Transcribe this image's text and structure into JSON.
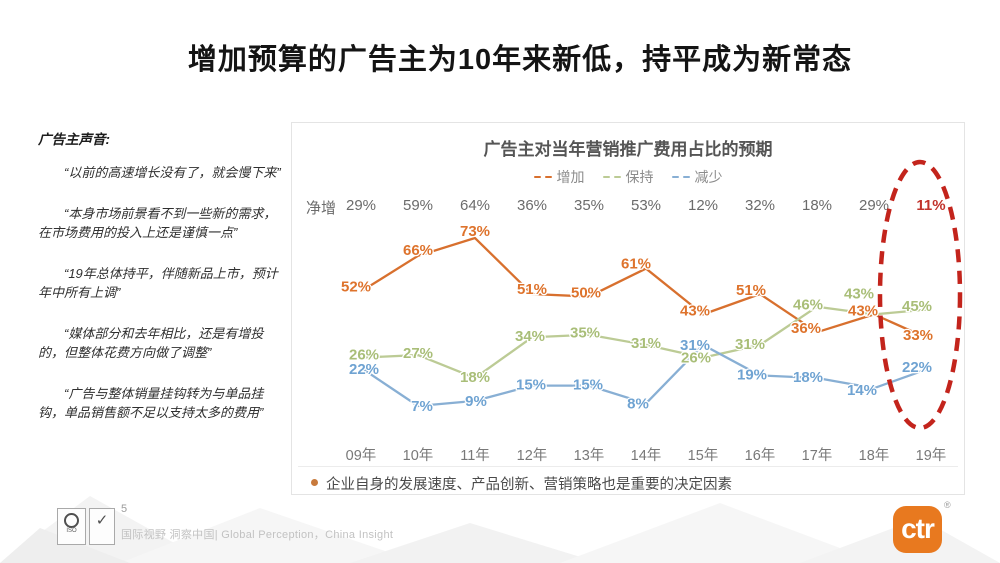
{
  "slide": {
    "title": "增加预算的广告主为10年来新低，持平成为新常态"
  },
  "voices": {
    "heading": "广告主声音:",
    "quotes": [
      "“以前的高速增长没有了，就会慢下来”",
      "“本身市场前景看不到一些新的需求，在市场费用的投入上还是谨慎一点”",
      "“19年总体持平，伴随新品上市，预计年中所有上调”",
      "“媒体部分和去年相比，还是有增投的，但整体花费方向做了调整”",
      "“广告与整体销量挂钩转为与单品挂钩，单品销售额不足以支持太多的费用”"
    ]
  },
  "chart": {
    "net_label": "净增",
    "net_highlight_color": "#c1332c",
    "highlight_color": "#c3241c",
    "footnote": "企业自身的发展速度、产品创新、营销策略也是重要的决定因素"
  },
  "chart_data": {
    "type": "line",
    "title": "广告主对当年营销推广费用占比的预期",
    "unit": "%",
    "x": [
      "09年",
      "10年",
      "11年",
      "12年",
      "13年",
      "14年",
      "15年",
      "16年",
      "17年",
      "18年",
      "19年"
    ],
    "series": [
      {
        "name": "增加",
        "color": "#d8702e",
        "label_color": "#de732c",
        "values": [
          52,
          66,
          73,
          51,
          50,
          61,
          43,
          51,
          36,
          43,
          33
        ]
      },
      {
        "name": "保持",
        "color": "#bccb95",
        "label_color": "#a9be78",
        "values": [
          26,
          27,
          18,
          34,
          35,
          31,
          26,
          31,
          46,
          43,
          45
        ]
      },
      {
        "name": "减少",
        "color": "#88afd4",
        "label_color": "#6fa3d2",
        "values": [
          22,
          7,
          9,
          15,
          15,
          8,
          31,
          19,
          18,
          14,
          22
        ]
      }
    ],
    "net_increase": [
      29,
      59,
      64,
      36,
      35,
      53,
      12,
      32,
      18,
      29,
      11
    ],
    "legend_position": "top",
    "grid": false,
    "ylim": [
      0,
      80
    ],
    "annotation": "red dashed ellipse highlighting the 19年 column"
  },
  "footer": {
    "page": "5",
    "tagline": "国际视野 洞察中国| Global Perception，China Insight",
    "logo_text": "ctr",
    "logo_color": "#e8791f",
    "registered_mark": "®",
    "cert_mini_1": "ISO",
    "cert_mini_2": "✓"
  }
}
